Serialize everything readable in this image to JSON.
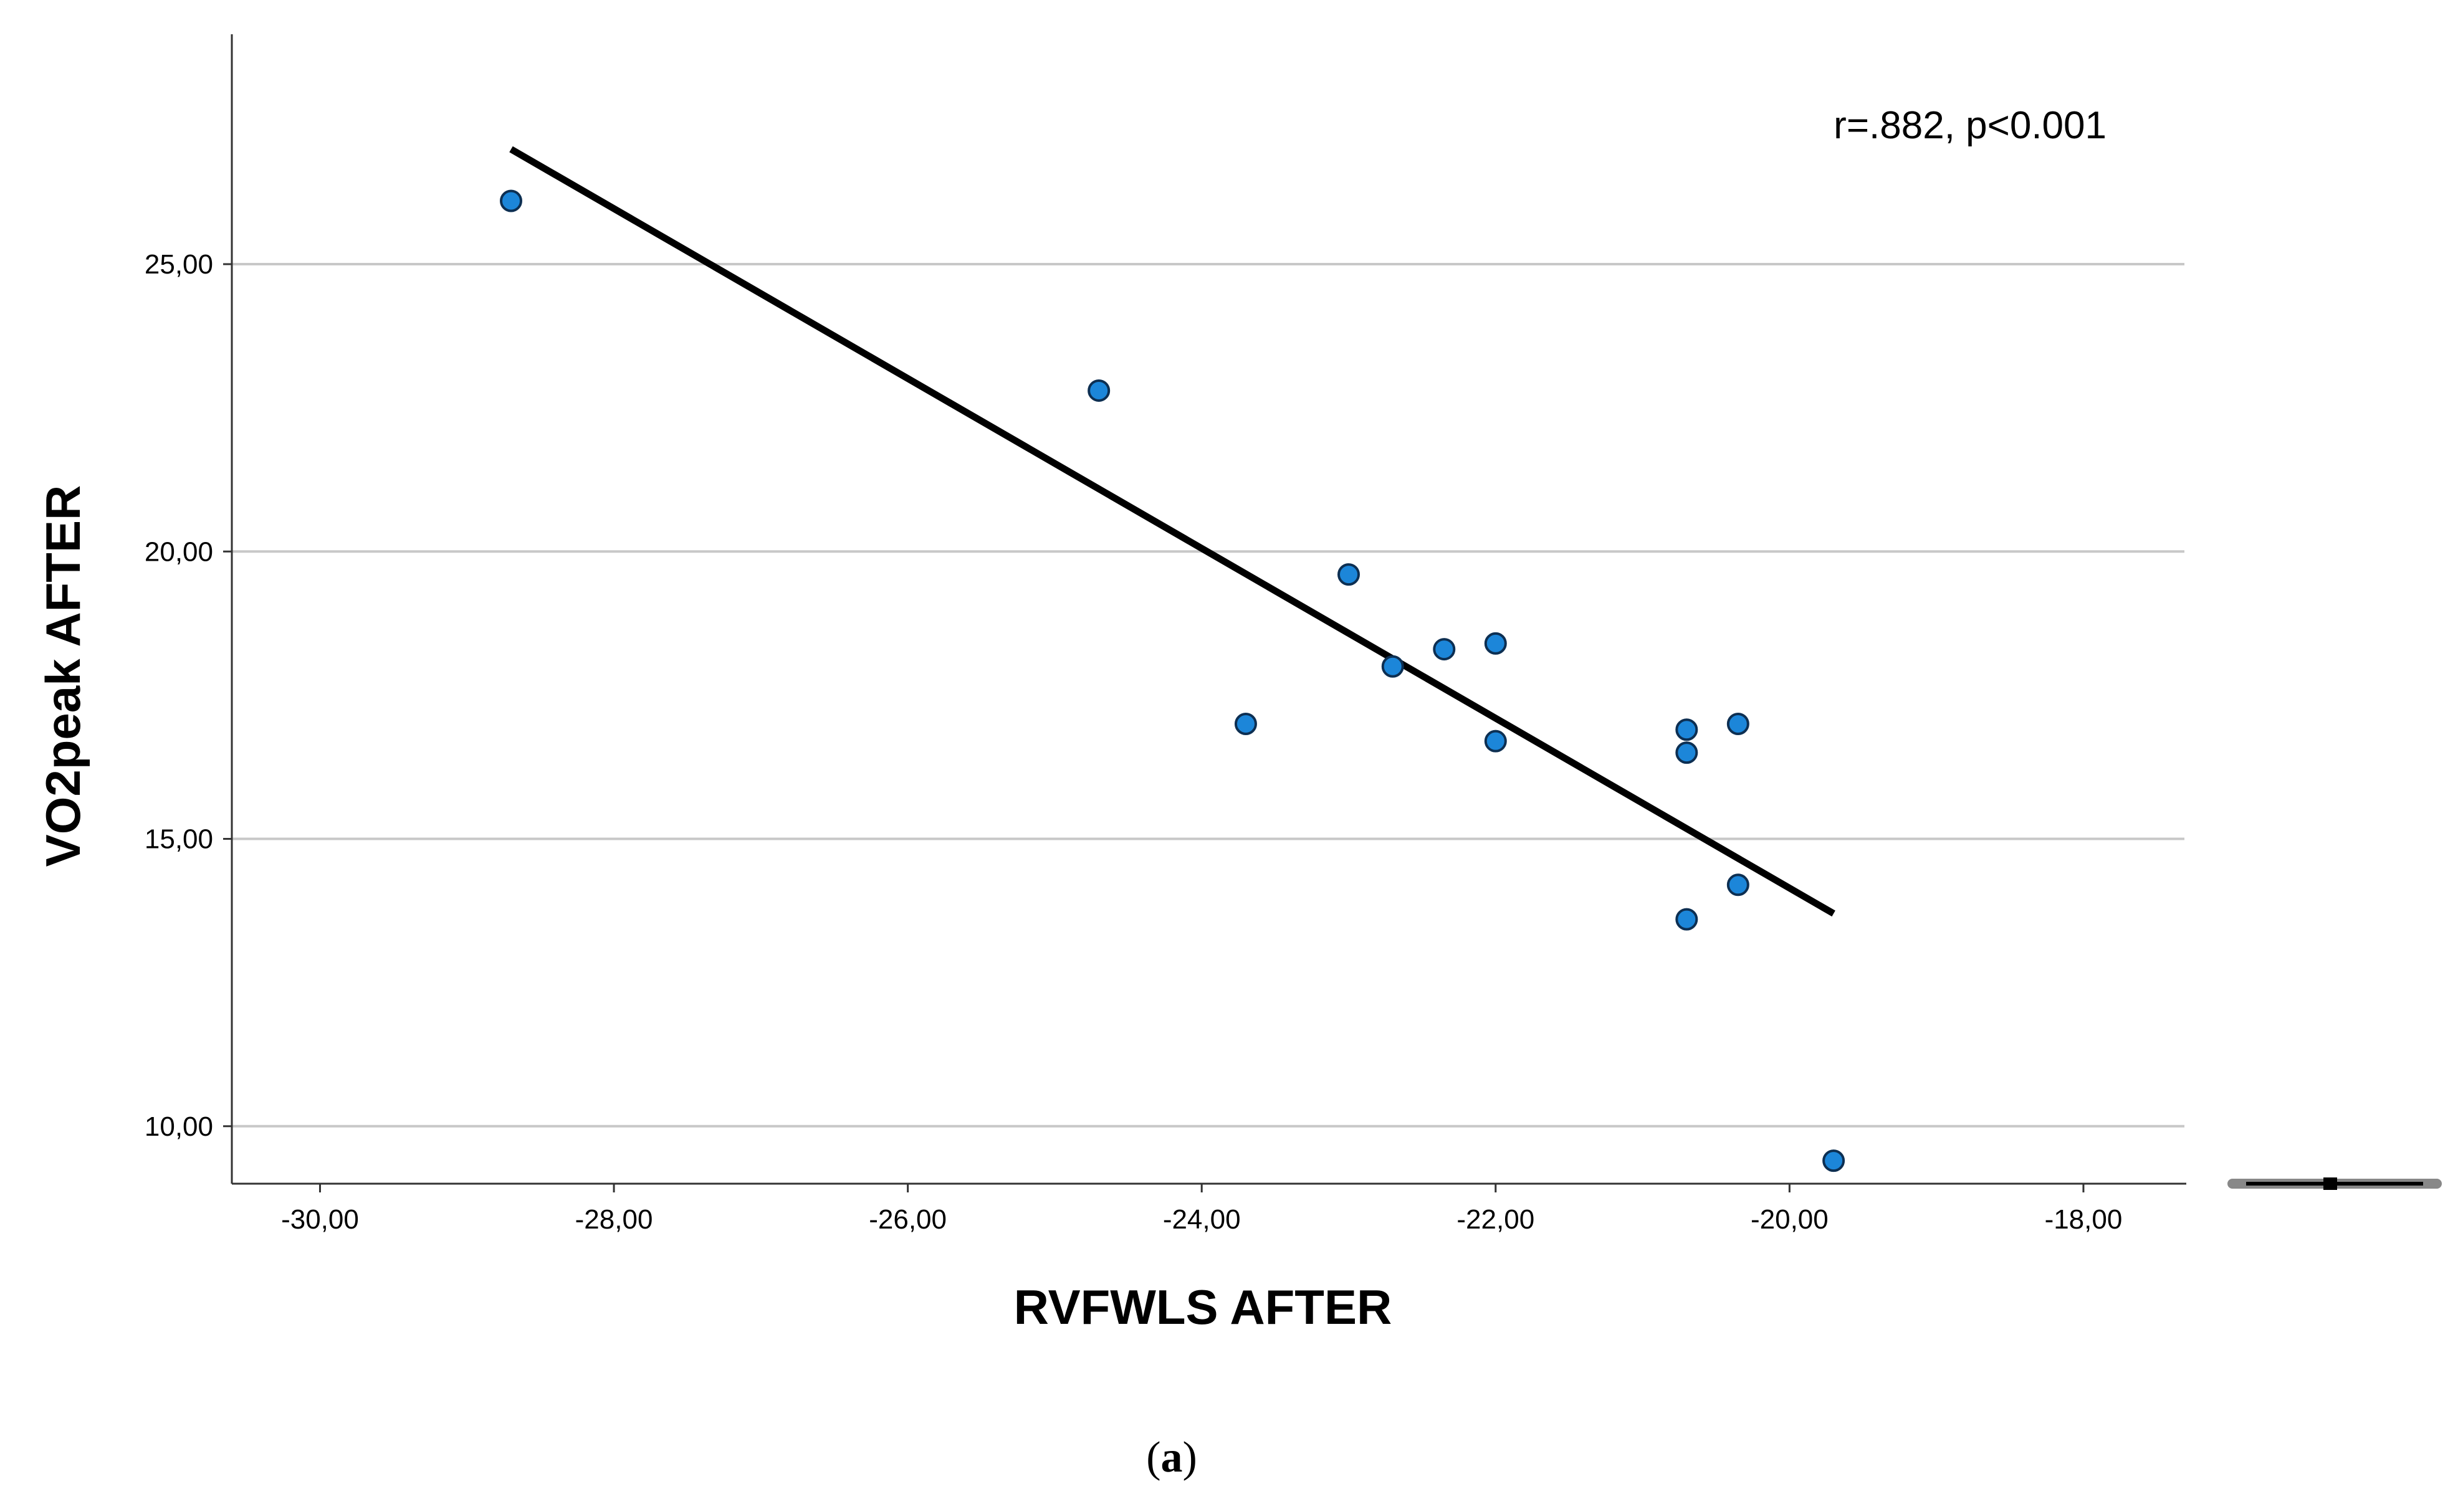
{
  "chart_data": {
    "type": "scatter",
    "xlabel": "RVFWLS AFTER",
    "ylabel": "VO2peak AFTER",
    "xlim": [
      -30.6,
      -17.3
    ],
    "ylim": [
      9.0,
      29.0
    ],
    "x_ticks": [
      -30,
      -28,
      -26,
      -24,
      -22,
      -20,
      -18
    ],
    "x_tick_labels": [
      "-30,00",
      "-28,00",
      "-26,00",
      "-24,00",
      "-22,00",
      "-20,00",
      "-18,00"
    ],
    "y_ticks": [
      10,
      15,
      20,
      25
    ],
    "y_tick_labels": [
      "10,00",
      "15,00",
      "20,00",
      "25,00"
    ],
    "grid": "horizontal",
    "annotation": "r=.882, p<0.001",
    "points": [
      {
        "x": -28.7,
        "y": 26.1
      },
      {
        "x": -24.7,
        "y": 22.8
      },
      {
        "x": -23.7,
        "y": 17.0
      },
      {
        "x": -23.0,
        "y": 19.6
      },
      {
        "x": -22.7,
        "y": 18.0
      },
      {
        "x": -22.35,
        "y": 18.3
      },
      {
        "x": -22.0,
        "y": 18.4
      },
      {
        "x": -22.0,
        "y": 16.7
      },
      {
        "x": -20.7,
        "y": 16.9
      },
      {
        "x": -20.7,
        "y": 16.5
      },
      {
        "x": -20.35,
        "y": 17.0
      },
      {
        "x": -20.7,
        "y": 13.6
      },
      {
        "x": -20.35,
        "y": 14.2
      },
      {
        "x": -19.7,
        "y": 9.4
      }
    ],
    "fit_line": {
      "x": [
        -28.7,
        -19.7
      ],
      "y": [
        27.0,
        13.7
      ]
    },
    "colors": {
      "point_fill": "#1c86d9",
      "point_stroke": "#0d2f52",
      "line": "#000000",
      "grid": "#c8c8c8",
      "axis": "#333333"
    }
  },
  "caption": {
    "open": "(",
    "letter": "a",
    "close": ")"
  }
}
